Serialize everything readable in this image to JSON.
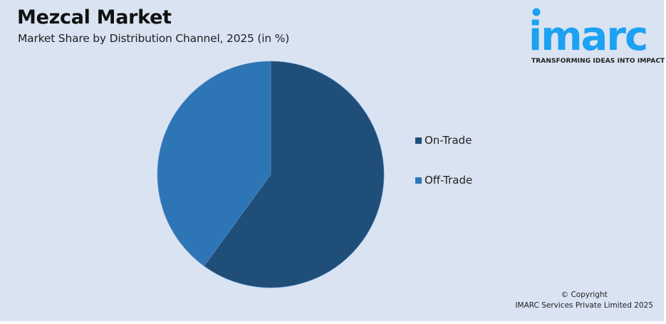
{
  "header": {
    "title": "Mezcal Market",
    "subtitle": "Market Share by Distribution Channel, 2025 (in %)"
  },
  "logo": {
    "brand": "imarc",
    "tagline": "TRANSFORMING IDEAS INTO IMPACT",
    "color": "#1da1f2"
  },
  "legend": {
    "items": [
      {
        "label": "On-Trade",
        "color": "#1f4e79"
      },
      {
        "label": "Off-Trade",
        "color": "#2e75b6"
      }
    ]
  },
  "footer": {
    "copyright_line1": "© Copyright",
    "copyright_line2": "IMARC Services Private Limited 2025"
  },
  "chart_data": {
    "type": "pie",
    "title": "Mezcal Market",
    "subtitle": "Market Share by Distribution Channel, 2025 (in %)",
    "categories": [
      "On-Trade",
      "Off-Trade"
    ],
    "values": [
      60,
      40
    ],
    "colors": [
      "#1f4e79",
      "#2e75b6"
    ],
    "start_angle": "12 o'clock, clockwise",
    "data_labels": false,
    "legend_position": "right"
  }
}
